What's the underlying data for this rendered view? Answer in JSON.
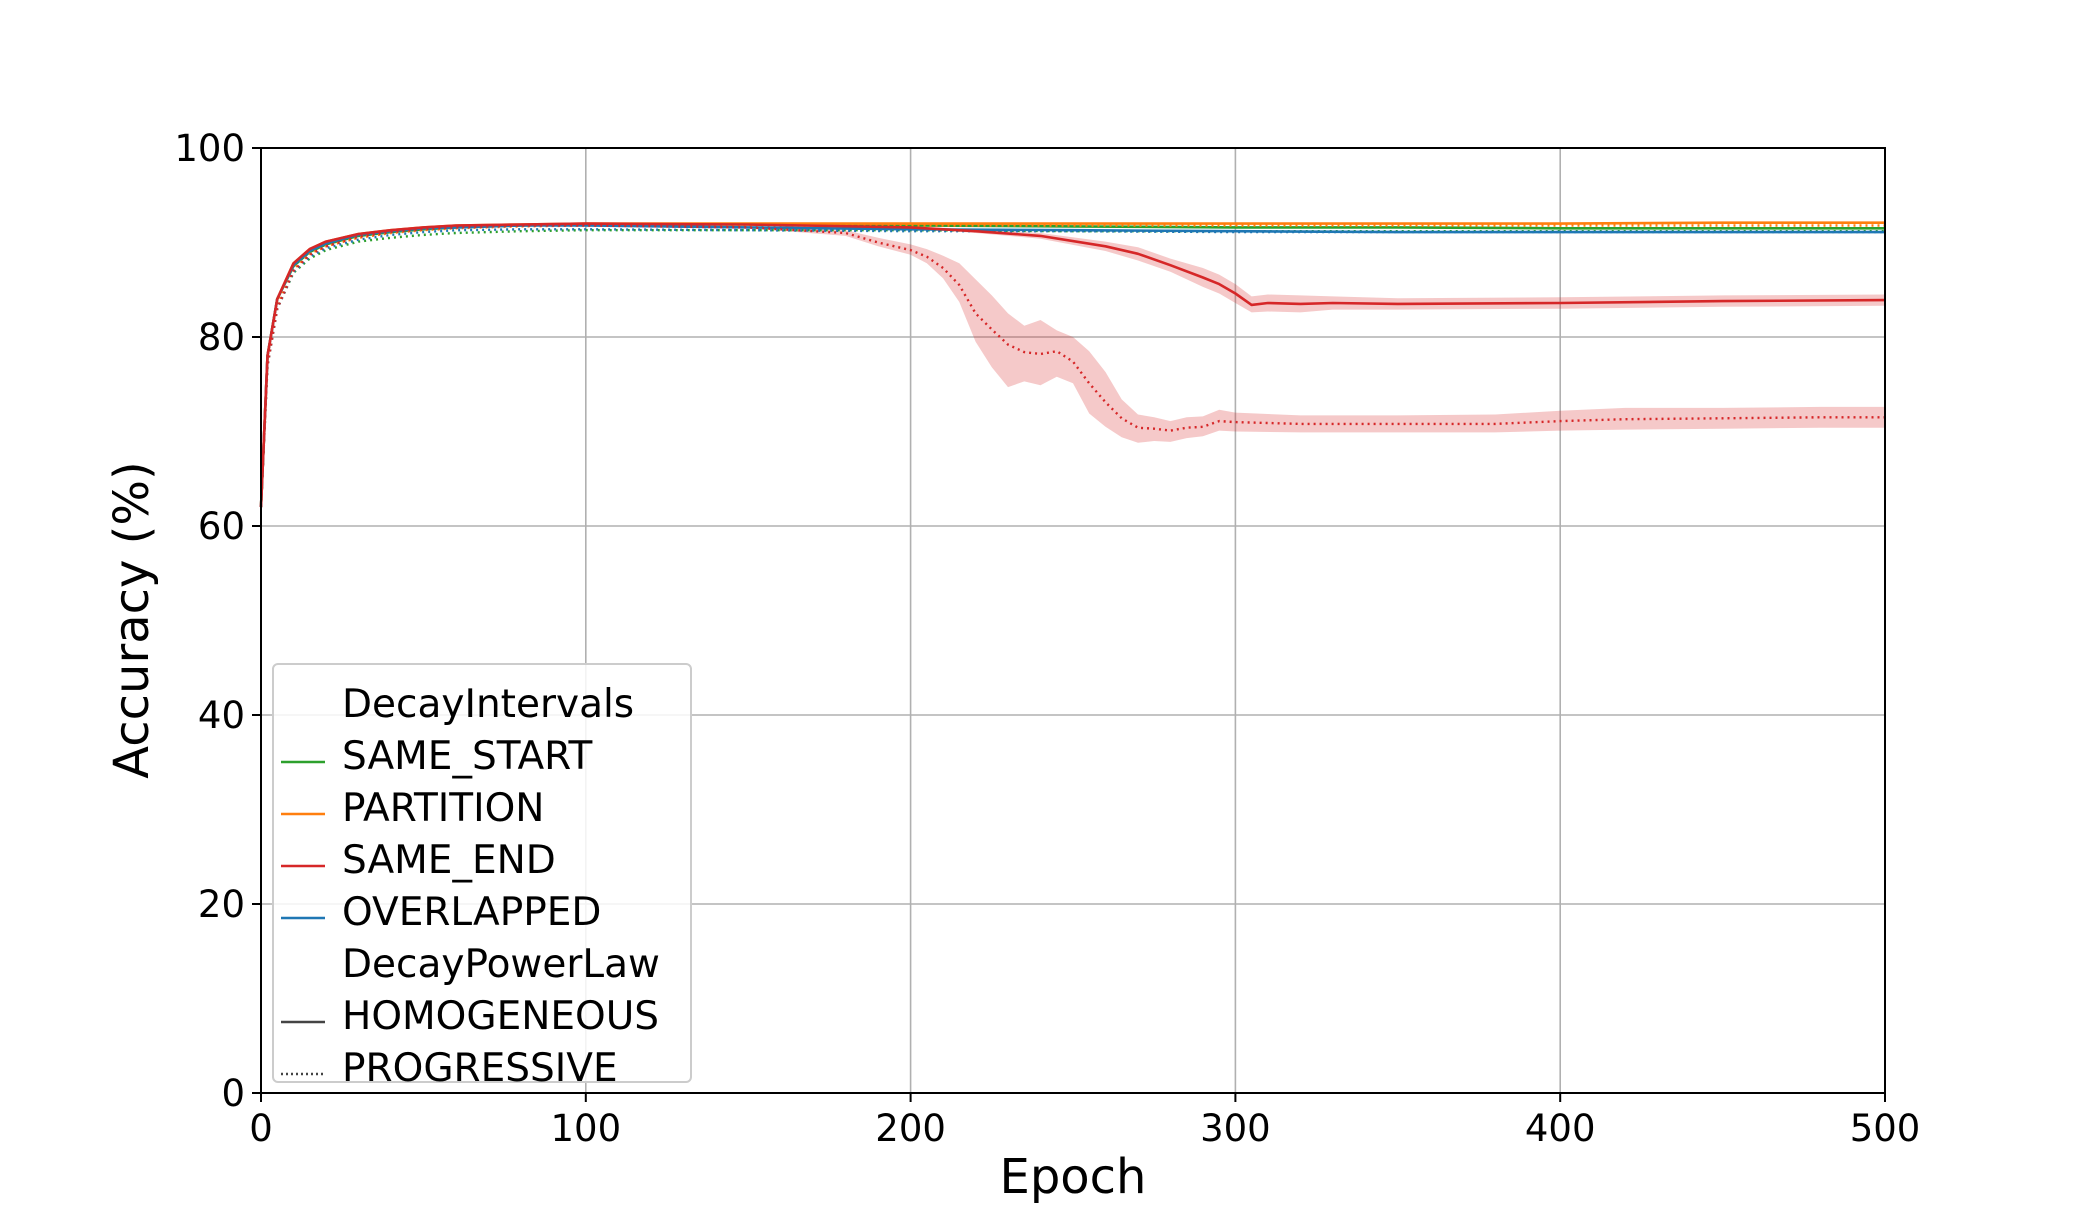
{
  "chart_data": {
    "type": "line",
    "title": "",
    "xlabel": "Epoch",
    "ylabel": "Accuracy (%)",
    "xlim": [
      0,
      500
    ],
    "ylim": [
      0,
      100
    ],
    "xticks": [
      "0",
      "100",
      "200",
      "300",
      "400",
      "500"
    ],
    "yticks": [
      "0",
      "20",
      "40",
      "60",
      "80",
      "100"
    ],
    "grid": true,
    "legend_position": "lower-left",
    "legend": {
      "groups": [
        {
          "title": "DecayIntervals",
          "entries": [
            {
              "label": "SAME_START",
              "color": "#2ca02c",
              "style": "solid"
            },
            {
              "label": "PARTITION",
              "color": "#ff7f0e",
              "style": "solid"
            },
            {
              "label": "SAME_END",
              "color": "#d62728",
              "style": "solid"
            },
            {
              "label": "OVERLAPPED",
              "color": "#1f77b4",
              "style": "solid"
            }
          ]
        },
        {
          "title": "DecayPowerLaw",
          "entries": [
            {
              "label": "HOMOGENEOUS",
              "color": "#444444",
              "style": "solid"
            },
            {
              "label": "PROGRESSIVE",
              "color": "#444444",
              "style": "dotted"
            }
          ]
        }
      ]
    },
    "series": [
      {
        "name": "SAME_START",
        "power_law": "HOMOGENEOUS",
        "color": "#2ca02c",
        "style": "solid",
        "x": [
          0,
          2,
          5,
          10,
          15,
          20,
          30,
          40,
          50,
          60,
          80,
          100,
          150,
          200,
          250,
          300,
          350,
          400,
          450,
          500
        ],
        "y": [
          62,
          78,
          84,
          87.5,
          89,
          89.8,
          90.7,
          91.1,
          91.4,
          91.6,
          91.8,
          91.9,
          91.9,
          91.8,
          91.7,
          91.6,
          91.6,
          91.5,
          91.5,
          91.5
        ]
      },
      {
        "name": "SAME_START",
        "power_law": "PROGRESSIVE",
        "color": "#2ca02c",
        "style": "dotted",
        "x": [
          0,
          2,
          5,
          10,
          15,
          20,
          30,
          40,
          50,
          60,
          80,
          100,
          150,
          200,
          250,
          300,
          350,
          400,
          450,
          500
        ],
        "y": [
          62,
          77,
          83,
          86.8,
          88.3,
          89.2,
          90.1,
          90.5,
          90.8,
          91.0,
          91.2,
          91.3,
          91.3,
          91.3,
          91.2,
          91.2,
          91.2,
          91.2,
          91.2,
          91.2
        ]
      },
      {
        "name": "PARTITION",
        "power_law": "HOMOGENEOUS",
        "color": "#ff7f0e",
        "style": "solid",
        "x": [
          0,
          2,
          5,
          10,
          15,
          20,
          30,
          40,
          50,
          60,
          80,
          100,
          150,
          200,
          250,
          300,
          350,
          400,
          450,
          500
        ],
        "y": [
          62,
          78,
          84,
          87.8,
          89.3,
          90.1,
          90.9,
          91.3,
          91.6,
          91.8,
          91.9,
          92.0,
          92.0,
          92.0,
          92.0,
          92.0,
          92.0,
          92.0,
          92.1,
          92.1
        ]
      },
      {
        "name": "PARTITION",
        "power_law": "PROGRESSIVE",
        "color": "#ff7f0e",
        "style": "dotted",
        "x": [
          0,
          2,
          5,
          10,
          15,
          20,
          30,
          40,
          50,
          60,
          80,
          100,
          150,
          200,
          250,
          300,
          350,
          400,
          450,
          500
        ],
        "y": [
          62,
          77.5,
          83.5,
          87.2,
          88.8,
          89.6,
          90.5,
          91.0,
          91.3,
          91.5,
          91.7,
          91.8,
          91.8,
          91.8,
          91.8,
          91.8,
          91.8,
          91.8,
          91.8,
          91.8
        ]
      },
      {
        "name": "OVERLAPPED",
        "power_law": "HOMOGENEOUS",
        "color": "#1f77b4",
        "style": "solid",
        "x": [
          0,
          2,
          5,
          10,
          15,
          20,
          30,
          40,
          50,
          60,
          80,
          100,
          150,
          200,
          250,
          300,
          350,
          400,
          450,
          500
        ],
        "y": [
          62,
          78,
          84,
          87.6,
          89.1,
          89.9,
          90.8,
          91.2,
          91.5,
          91.6,
          91.8,
          91.8,
          91.6,
          91.4,
          91.3,
          91.2,
          91.1,
          91.1,
          91.1,
          91.1
        ]
      },
      {
        "name": "OVERLAPPED",
        "power_law": "PROGRESSIVE",
        "color": "#1f77b4",
        "style": "dotted",
        "x": [
          0,
          2,
          5,
          10,
          15,
          20,
          30,
          40,
          50,
          60,
          80,
          100,
          150,
          200,
          250,
          300,
          350,
          400,
          450,
          500
        ],
        "y": [
          62,
          77,
          83,
          86.9,
          88.5,
          89.4,
          90.3,
          90.8,
          91.1,
          91.3,
          91.4,
          91.4,
          91.3,
          91.2,
          91.2,
          91.1,
          91.1,
          91.1,
          91.1,
          91.1
        ]
      },
      {
        "name": "SAME_END",
        "power_law": "HOMOGENEOUS",
        "color": "#d62728",
        "style": "solid",
        "x": [
          0,
          2,
          5,
          10,
          15,
          20,
          30,
          40,
          50,
          60,
          80,
          100,
          150,
          200,
          220,
          240,
          260,
          270,
          280,
          290,
          295,
          300,
          305,
          310,
          320,
          330,
          350,
          400,
          450,
          500
        ],
        "y": [
          62,
          78,
          84,
          87.8,
          89.3,
          90.1,
          90.9,
          91.3,
          91.6,
          91.8,
          91.9,
          92.0,
          91.9,
          91.6,
          91.2,
          90.7,
          89.6,
          88.8,
          87.6,
          86.3,
          85.6,
          84.6,
          83.4,
          83.6,
          83.5,
          83.6,
          83.5,
          83.6,
          83.8,
          83.9
        ],
        "band_lower": [
          62,
          78,
          84,
          87.8,
          89.3,
          90.1,
          90.9,
          91.3,
          91.6,
          91.8,
          91.9,
          92.0,
          91.9,
          91.5,
          91.0,
          90.4,
          89.1,
          88.1,
          86.9,
          85.3,
          84.6,
          83.6,
          82.6,
          82.7,
          82.6,
          82.9,
          82.9,
          83.0,
          83.2,
          83.3
        ],
        "band_upper": [
          62,
          78,
          84,
          87.8,
          89.3,
          90.1,
          90.9,
          91.3,
          91.6,
          91.8,
          91.9,
          92.0,
          91.9,
          91.7,
          91.4,
          91.0,
          90.1,
          89.5,
          88.3,
          87.3,
          86.6,
          85.6,
          84.3,
          84.5,
          84.4,
          84.3,
          84.1,
          84.2,
          84.4,
          84.5
        ]
      },
      {
        "name": "SAME_END",
        "power_law": "PROGRESSIVE",
        "color": "#d62728",
        "style": "dotted",
        "x": [
          0,
          2,
          5,
          10,
          15,
          20,
          30,
          40,
          50,
          60,
          80,
          100,
          150,
          180,
          190,
          200,
          205,
          210,
          215,
          220,
          225,
          230,
          235,
          240,
          245,
          250,
          255,
          260,
          265,
          270,
          275,
          280,
          285,
          290,
          295,
          300,
          320,
          350,
          380,
          400,
          420,
          450,
          480,
          500
        ],
        "y": [
          62,
          77,
          83,
          87.0,
          88.7,
          89.6,
          90.6,
          91.1,
          91.4,
          91.6,
          91.8,
          91.8,
          91.6,
          91.0,
          90.0,
          89.2,
          88.5,
          87.3,
          85.5,
          82.5,
          80.8,
          79.2,
          78.4,
          78.2,
          78.5,
          77.4,
          75.1,
          73.1,
          71.4,
          70.4,
          70.3,
          70.1,
          70.4,
          70.5,
          71.1,
          71.0,
          70.8,
          70.8,
          70.8,
          71.1,
          71.3,
          71.4,
          71.5,
          71.5
        ],
        "band_lower": [
          62,
          77,
          83,
          87.0,
          88.7,
          89.6,
          90.6,
          91.1,
          91.4,
          91.6,
          91.8,
          91.8,
          91.5,
          90.7,
          89.6,
          88.7,
          87.8,
          86.2,
          83.7,
          79.5,
          76.8,
          74.7,
          75.3,
          74.9,
          75.8,
          75.1,
          71.9,
          70.5,
          69.4,
          68.8,
          69.0,
          68.9,
          69.3,
          69.5,
          70.1,
          70.0,
          69.9,
          69.9,
          69.9,
          70.1,
          70.2,
          70.3,
          70.4,
          70.4
        ],
        "band_upper": [
          62,
          77,
          83,
          87.0,
          88.7,
          89.6,
          90.6,
          91.1,
          91.4,
          91.6,
          91.8,
          91.8,
          91.7,
          91.3,
          90.5,
          89.8,
          89.3,
          88.6,
          87.8,
          86.1,
          84.4,
          82.5,
          81.2,
          81.8,
          80.7,
          80.0,
          78.5,
          76.3,
          73.4,
          71.8,
          71.5,
          71.1,
          71.5,
          71.6,
          72.3,
          72.0,
          71.7,
          71.7,
          71.8,
          72.2,
          72.5,
          72.5,
          72.6,
          72.6
        ]
      }
    ]
  }
}
